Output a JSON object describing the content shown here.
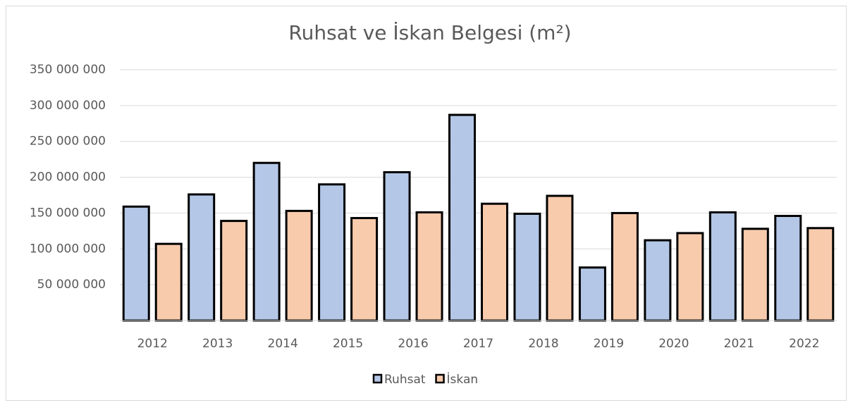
{
  "chart_data": {
    "type": "bar",
    "title": "Ruhsat ve İskan Belgesi (m²)",
    "categories": [
      "2012",
      "2013",
      "2014",
      "2015",
      "2016",
      "2017",
      "2018",
      "2019",
      "2020",
      "2021",
      "2022"
    ],
    "series": [
      {
        "name": "Ruhsat",
        "color": "#b4c7e7",
        "values": [
          159000000,
          176000000,
          220000000,
          190000000,
          207000000,
          287000000,
          149000000,
          74000000,
          112000000,
          151000000,
          146000000
        ]
      },
      {
        "name": "İskan",
        "color": "#f8cbad",
        "values": [
          107000000,
          139000000,
          153000000,
          143000000,
          151000000,
          163000000,
          174000000,
          150000000,
          122000000,
          128000000,
          129000000
        ]
      }
    ],
    "ylim": [
      0,
      350000000
    ],
    "yticks": [
      {
        "value": 50000000,
        "label": "50 000 000"
      },
      {
        "value": 100000000,
        "label": "100 000 000"
      },
      {
        "value": 150000000,
        "label": "150 000 000"
      },
      {
        "value": 200000000,
        "label": "200 000 000"
      },
      {
        "value": 250000000,
        "label": "250 000 000"
      },
      {
        "value": 300000000,
        "label": "300 000 000"
      },
      {
        "value": 350000000,
        "label": "350 000 000"
      }
    ],
    "grid": true,
    "legend": "bottom"
  }
}
